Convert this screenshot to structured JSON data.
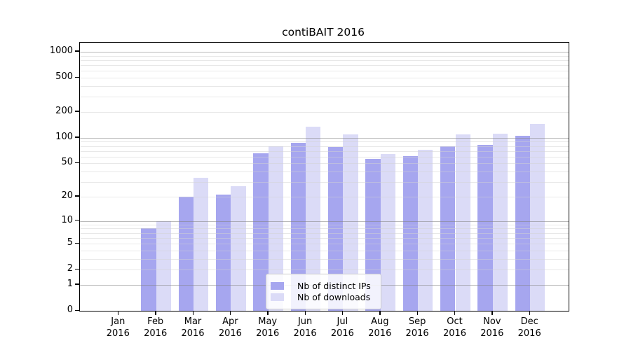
{
  "title": "contiBAIT 2016",
  "colors": {
    "ips_bar": "#a6a6ef",
    "downloads_bar": "#dbdbf7",
    "minor_grid": "#d2d2d2",
    "major_grid": "#828282",
    "axis": "#000000",
    "legend_border": "#cccccc"
  },
  "legend": {
    "items": [
      {
        "label": "Nb of distinct IPs",
        "color": "#a6a6ef"
      },
      {
        "label": "Nb of downloads",
        "color": "#dbdbf7"
      }
    ]
  },
  "y_axis": {
    "ticks": [
      0,
      1,
      2,
      5,
      10,
      20,
      50,
      100,
      200,
      500,
      1000
    ],
    "major_gridlines": [
      1,
      10,
      100,
      1000
    ],
    "minor_gridlines": [
      2,
      3,
      4,
      5,
      6,
      7,
      8,
      9,
      20,
      30,
      40,
      50,
      60,
      70,
      80,
      90,
      200,
      300,
      400,
      500,
      600,
      700,
      800,
      900
    ]
  },
  "x_axis": {
    "months": [
      "Jan",
      "Feb",
      "Mar",
      "Apr",
      "May",
      "Jun",
      "Jul",
      "Aug",
      "Sep",
      "Oct",
      "Nov",
      "Dec"
    ],
    "year": "2016"
  },
  "chart_data": {
    "type": "bar",
    "title": "contiBAIT 2016",
    "categories": [
      "Jan 2016",
      "Feb 2016",
      "Mar 2016",
      "Apr 2016",
      "May 2016",
      "Jun 2016",
      "Jul 2016",
      "Aug 2016",
      "Sep 2016",
      "Oct 2016",
      "Nov 2016",
      "Dec 2016"
    ],
    "series": [
      {
        "name": "Nb of distinct IPs",
        "values": [
          0,
          8,
          20,
          21,
          66,
          88,
          78,
          57,
          61,
          80,
          83,
          105
        ]
      },
      {
        "name": "Nb of downloads",
        "values": [
          0,
          10,
          34,
          27,
          80,
          134,
          110,
          65,
          72,
          110,
          112,
          146
        ]
      }
    ],
    "xlabel": "",
    "ylabel": "",
    "y_scale": "log10(1+x)",
    "y_ticks": [
      0,
      1,
      2,
      5,
      10,
      20,
      50,
      100,
      200,
      500,
      1000
    ],
    "ylim": [
      0,
      1280
    ],
    "grid": "horizontal, log minor + major decade lines, drawn over bars",
    "legend_position": "bottom-center inside plot"
  }
}
